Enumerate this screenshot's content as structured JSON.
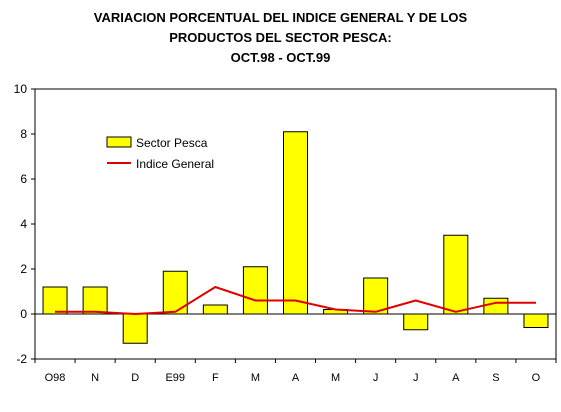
{
  "title": {
    "line1": "VARIACION PORCENTUAL DEL INDICE GENERAL Y DE LOS",
    "line2": "PRODUCTOS DEL SECTOR PESCA:",
    "line3": "OCT.98 - OCT.99"
  },
  "colors": {
    "bar": "#ffff00",
    "line": "#e00000",
    "axis": "#000000"
  },
  "chart_data": {
    "type": "bar",
    "title": "VARIACION PORCENTUAL DEL INDICE GENERAL Y DE LOS PRODUCTOS DEL SECTOR PESCA: OCT.98 - OCT.99",
    "categories": [
      "O98",
      "N",
      "D",
      "E99",
      "F",
      "M",
      "A",
      "M",
      "J",
      "J",
      "A",
      "S",
      "O"
    ],
    "ylim": [
      -2,
      10
    ],
    "yticks": [
      -2,
      0,
      2,
      4,
      6,
      8,
      10
    ],
    "grid": false,
    "legend_position": "upper-left",
    "series": [
      {
        "name": "Sector Pesca",
        "type": "bar",
        "values": [
          1.2,
          1.2,
          -1.3,
          1.9,
          0.4,
          2.1,
          8.1,
          0.2,
          1.6,
          -0.7,
          3.5,
          0.7,
          -0.6
        ]
      },
      {
        "name": "Indice General",
        "type": "line",
        "values": [
          0.1,
          0.1,
          0.0,
          0.1,
          1.2,
          0.6,
          0.6,
          0.2,
          0.1,
          0.6,
          0.1,
          0.5,
          0.5
        ]
      }
    ]
  }
}
